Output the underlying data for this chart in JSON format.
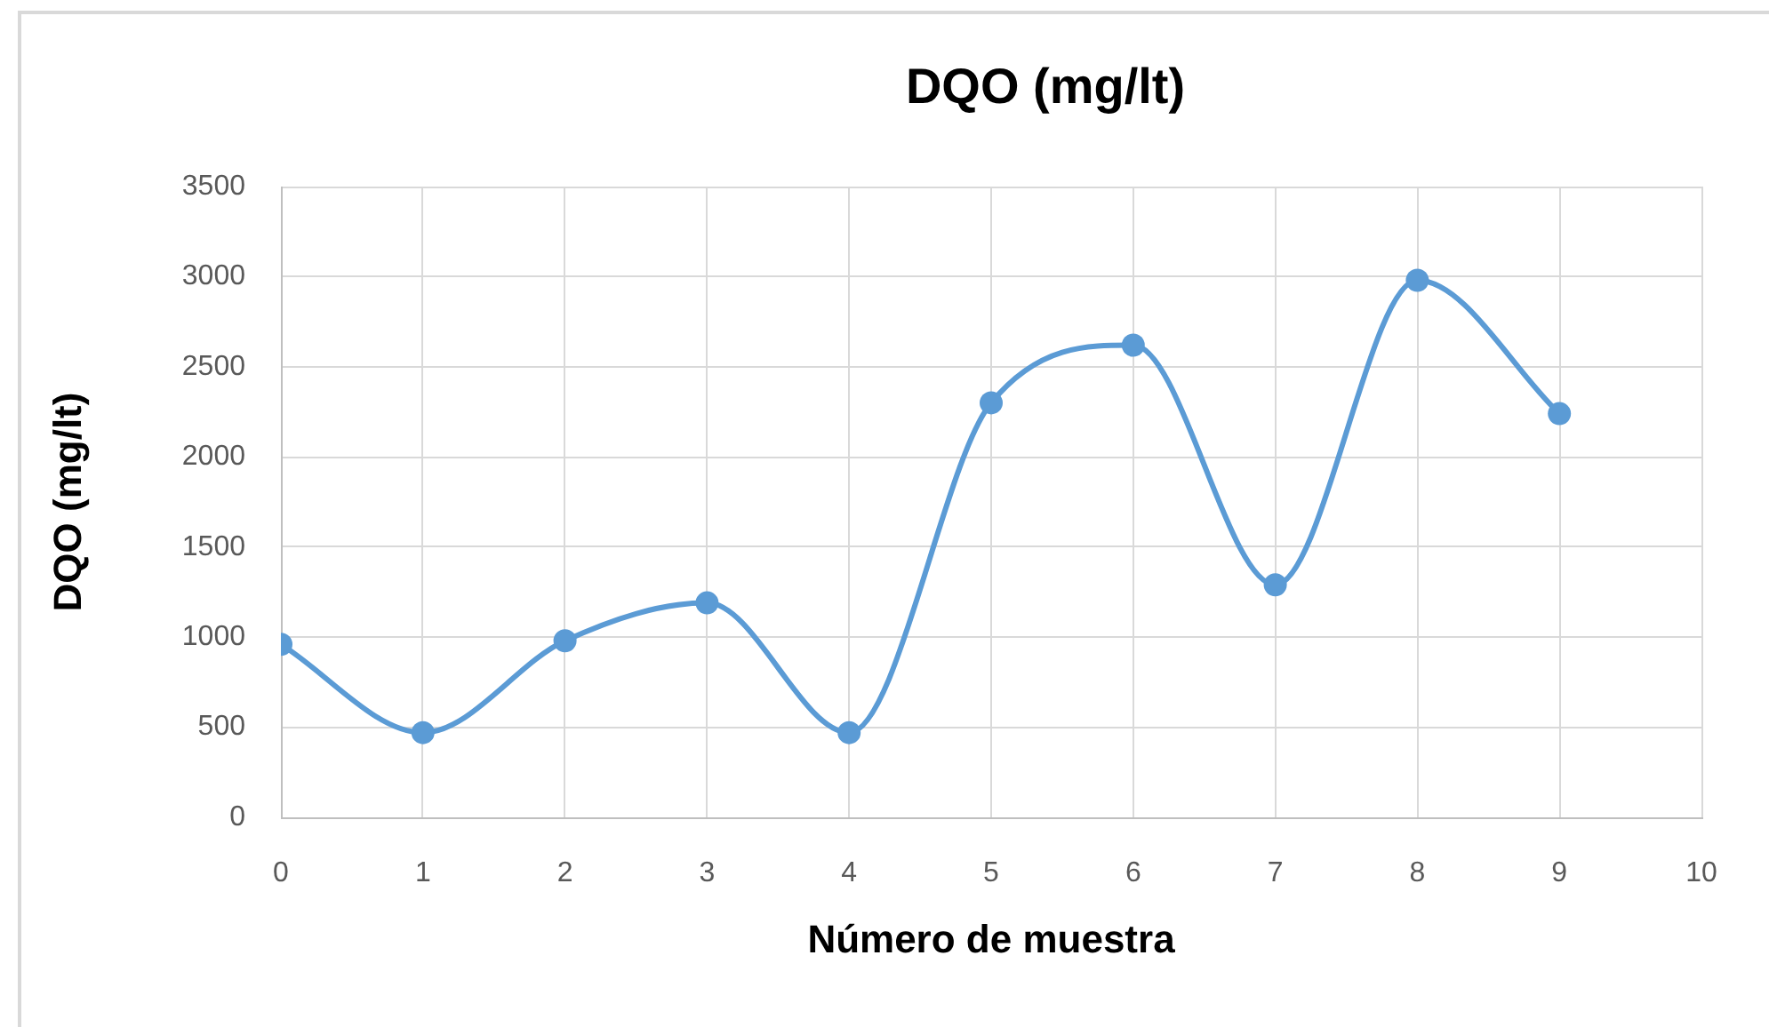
{
  "chart_data": {
    "type": "line",
    "title": "DQO (mg/lt)",
    "xlabel": "Número de muestra",
    "ylabel": "DQO (mg/lt)",
    "x": [
      0,
      1,
      2,
      3,
      4,
      5,
      6,
      7,
      8,
      9
    ],
    "values": [
      960,
      470,
      980,
      1190,
      470,
      2300,
      2620,
      1290,
      2980,
      2240
    ],
    "color": "#5b9bd5",
    "xlim": [
      0,
      10
    ],
    "xticks": [
      0,
      1,
      2,
      3,
      4,
      5,
      6,
      7,
      8,
      9,
      10
    ],
    "ylim": [
      0,
      3500
    ],
    "yticks": [
      0,
      500,
      1000,
      1500,
      2000,
      2500,
      3000,
      3500
    ],
    "grid": true,
    "marker": "circle"
  }
}
